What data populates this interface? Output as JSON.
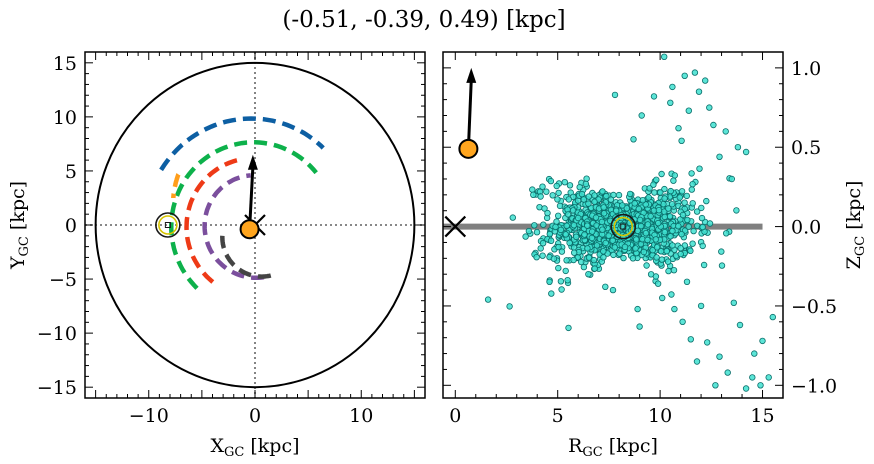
{
  "title": "(-0.51, -0.39, 0.49) [kpc]",
  "chart_data": [
    {
      "type": "line",
      "panel": "left",
      "xlabel": "X",
      "xlabel_sub": "GC",
      "xlabel_unit": " [kpc]",
      "ylabel": "Y",
      "ylabel_sub": "GC",
      "ylabel_unit": " [kpc]",
      "xlim": [
        -16,
        16
      ],
      "ylim": [
        -16,
        16
      ],
      "xticks": [
        -10,
        0,
        10
      ],
      "yticks": [
        -15,
        -10,
        -5,
        0,
        5,
        10,
        15
      ],
      "xtick_labels": [
        "−10",
        "0",
        "10"
      ],
      "ytick_labels": [
        "−15",
        "−10",
        "−5",
        "0",
        "5",
        "10",
        "15"
      ],
      "guide_lines": {
        "x": 0,
        "y": 0,
        "style": "dotted"
      },
      "boundary_circle": {
        "radius": 15
      },
      "spiral_arms": [
        {
          "color": "#0d5fa3",
          "radius": 10.2,
          "start_deg": 150,
          "end_deg": 48
        },
        {
          "color": "#0db14b",
          "radius": 8.0,
          "start_deg": 227,
          "end_deg": 40
        },
        {
          "color": "#ff9e1b",
          "radius": 8.6,
          "start_deg": 147,
          "end_deg": 162
        },
        {
          "color": "#ee3a17",
          "radius": 6.6,
          "start_deg": 233,
          "end_deg": 100
        },
        {
          "color": "#7b4f9d",
          "radius": 4.9,
          "start_deg": 280,
          "end_deg": 95
        },
        {
          "color": "#444444",
          "radius": 3.8,
          "start_deg": 285,
          "end_deg": 180,
          "cx": 0.5,
          "cy": -1
        }
      ],
      "sun": {
        "x": -8.2,
        "y": 0
      },
      "galactic_center": {
        "x": 0,
        "y": 0
      },
      "source": {
        "x": -0.51,
        "y": -0.39,
        "color": "#ffa51e"
      },
      "direction_arrow": {
        "x0": -0.51,
        "y0": -0.39,
        "x1": -0.2,
        "y1": 6.5
      }
    },
    {
      "type": "scatter",
      "panel": "right",
      "xlabel": "R",
      "xlabel_sub": "GC",
      "xlabel_unit": " [kpc]",
      "ylabel": "Z",
      "ylabel_sub": "GC",
      "ylabel_unit": " [kpc]",
      "ylabel_side": "right",
      "xlim": [
        -0.6,
        16
      ],
      "ylim": [
        -1.08,
        1.1
      ],
      "xticks": [
        0,
        5,
        10,
        15
      ],
      "yticks": [
        -1.0,
        -0.5,
        0.0,
        0.5,
        1.0
      ],
      "xtick_labels": [
        "0",
        "5",
        "10",
        "15"
      ],
      "ytick_labels": [
        "−1.0",
        "−0.5",
        "0.0",
        "0.5",
        "1.0"
      ],
      "disk_line": {
        "x0": -0.6,
        "x1": 15,
        "y": 0,
        "color": "#808080"
      },
      "scatter_color": "#3fe0d0",
      "scatter_edge": "#0a6e6a",
      "cluster": {
        "n": 1400,
        "center_x": 8.2,
        "center_z": 0.0,
        "sigma_x": 2.3,
        "sigma_z": 0.12
      },
      "outliers": [
        [
          10.2,
          1.07
        ],
        [
          11.7,
          0.97
        ],
        [
          10.5,
          0.78
        ],
        [
          11.2,
          0.95
        ],
        [
          12.2,
          0.92
        ],
        [
          9.7,
          0.82
        ],
        [
          10.6,
          0.88
        ],
        [
          7.8,
          0.83
        ],
        [
          12.6,
          0.64
        ],
        [
          13.8,
          0.5
        ],
        [
          11.4,
          0.73
        ],
        [
          9.1,
          0.7
        ],
        [
          12.9,
          0.44
        ],
        [
          13.5,
          0.3
        ],
        [
          14.2,
          0.47
        ],
        [
          11.9,
          0.85
        ],
        [
          8.7,
          0.55
        ],
        [
          10.9,
          0.62
        ],
        [
          12.4,
          0.75
        ],
        [
          13.2,
          0.6
        ],
        [
          1.6,
          -0.46
        ],
        [
          6.5,
          -0.3
        ],
        [
          7.7,
          -0.4
        ],
        [
          9.0,
          -0.63
        ],
        [
          10.7,
          -0.52
        ],
        [
          11.5,
          -0.71
        ],
        [
          11.8,
          -0.85
        ],
        [
          12.3,
          -0.73
        ],
        [
          13.3,
          -0.92
        ],
        [
          14.5,
          -0.95
        ],
        [
          12.7,
          -1.0
        ],
        [
          14.2,
          -1.02
        ],
        [
          15.3,
          -0.95
        ],
        [
          13.9,
          -0.62
        ],
        [
          15.0,
          -0.72
        ],
        [
          12.9,
          -0.82
        ],
        [
          14.6,
          -0.8
        ],
        [
          11.1,
          -0.6
        ],
        [
          10.1,
          -0.45
        ],
        [
          14.9,
          -1.0
        ],
        [
          13.6,
          -0.48
        ],
        [
          12.0,
          -0.5
        ],
        [
          9.9,
          -0.36
        ],
        [
          15.5,
          -0.57
        ],
        [
          8.9,
          -0.52
        ]
      ],
      "sun": {
        "R": 8.2,
        "Z": 0.0
      },
      "galactic_center": {
        "R": 0,
        "Z": 0
      },
      "source": {
        "R": 0.64,
        "Z": 0.49,
        "color": "#ffa51e"
      },
      "direction_arrow": {
        "R0": 0.64,
        "Z0": 0.49,
        "R1": 0.78,
        "Z1": 1.0
      }
    }
  ]
}
